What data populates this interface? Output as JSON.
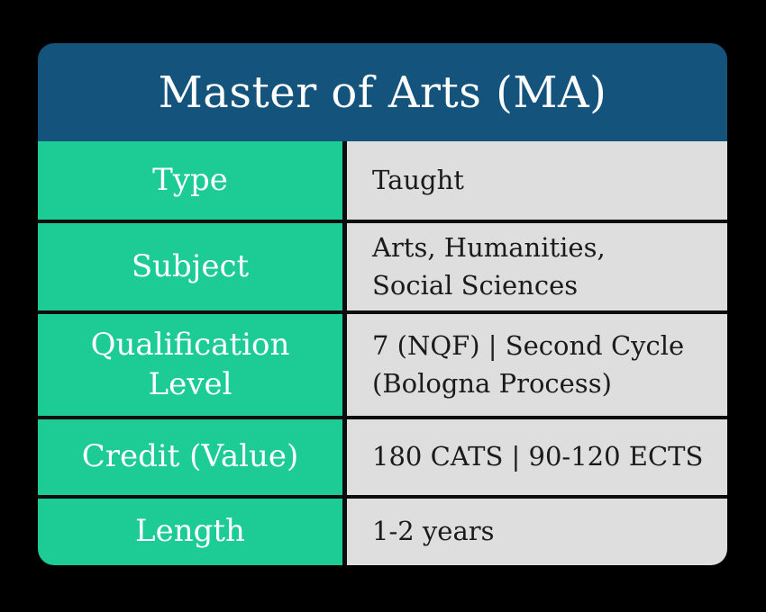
{
  "header": {
    "title": "Master of Arts (MA)"
  },
  "table": {
    "rows": [
      {
        "label_lines": [
          "Type"
        ],
        "value_lines": [
          "Taught"
        ]
      },
      {
        "label_lines": [
          "Subject"
        ],
        "value_lines": [
          "Arts, Humanities,",
          "Social Sciences"
        ]
      },
      {
        "label_lines": [
          "Qualification",
          "Level"
        ],
        "value_lines": [
          "7 (NQF) | Second Cycle",
          "(Bologna Process)"
        ]
      },
      {
        "label_lines": [
          "Credit (Value)"
        ],
        "value_lines": [
          "180 CATS | 90-120 ECTS"
        ]
      },
      {
        "label_lines": [
          "Length"
        ],
        "value_lines": [
          "1-2 years"
        ]
      }
    ]
  },
  "colors": {
    "background": "#000000",
    "header_blue": "#14537C",
    "label_green": "#1DCB94",
    "value_gray": "#DEDEDE",
    "rule_black": "#0D0D0D",
    "light_text": "#FFFFFF",
    "dark_text": "#1B1B1B"
  }
}
